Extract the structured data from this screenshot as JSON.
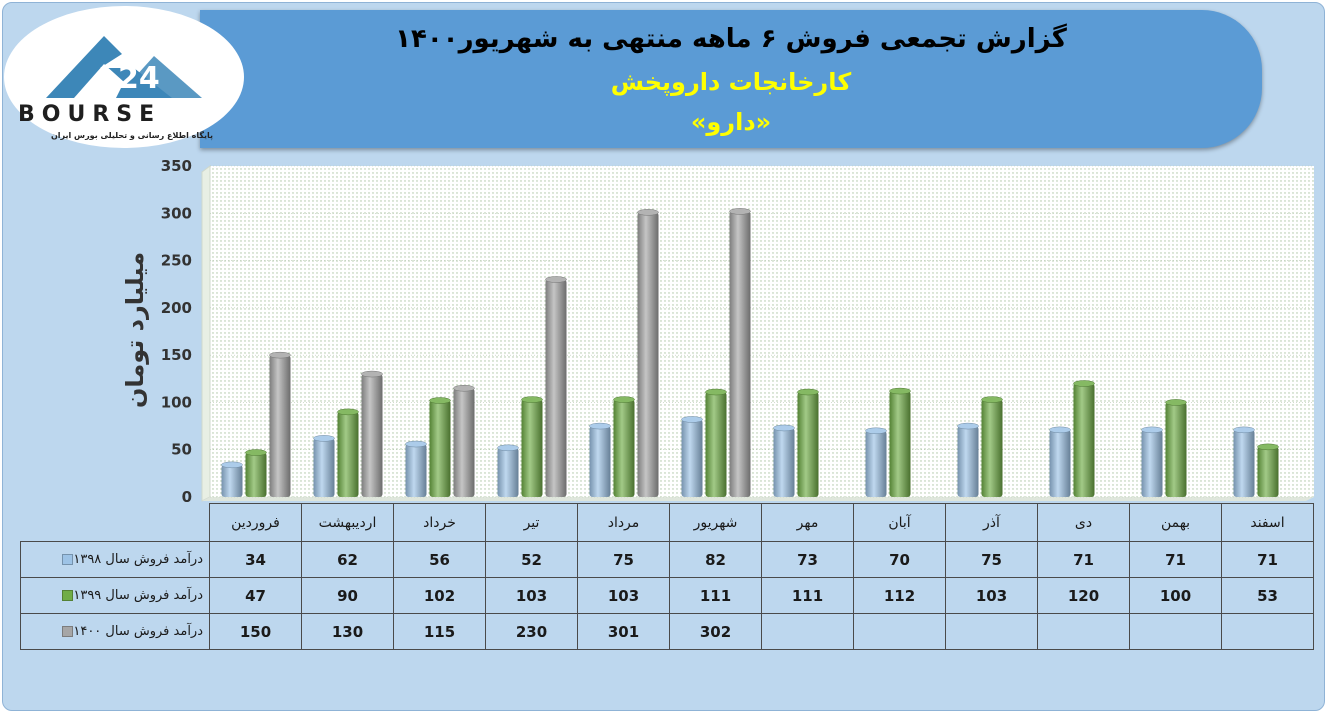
{
  "header": {
    "title": "گزارش تجمعی فروش ۶ ماهه منتهی به شهریور۱۴۰۰",
    "subtitle": "کارخانجات داروپخش",
    "company": "«دارو»"
  },
  "logo": {
    "text": "BOURSE",
    "mark": "24",
    "tagline": "پایگاه اطلاع رسانی و تحلیلی بورس ایران"
  },
  "colors": {
    "series_1398": "#9dc3e6",
    "series_1399": "#70ad47",
    "series_1400": "#a6a6a6",
    "header_bg": "#5b9bd5",
    "subtitle_text": "#ffff00"
  },
  "chart_data": {
    "type": "bar",
    "ylabel": "میلیارد تومان",
    "ylim": [
      0,
      350
    ],
    "yticks": [
      0,
      50,
      100,
      150,
      200,
      250,
      300,
      350
    ],
    "grid": "dotted",
    "legend": "table-bottom",
    "categories": [
      "فروردین",
      "اردیبهشت",
      "خرداد",
      "تیر",
      "مرداد",
      "شهریور",
      "مهر",
      "آبان",
      "آذر",
      "دی",
      "بهمن",
      "اسفند"
    ],
    "series": [
      {
        "name": "درآمد فروش سال ۱۳۹۸",
        "color": "#9dc3e6",
        "values": [
          34,
          62,
          56,
          52,
          75,
          82,
          73,
          70,
          75,
          71,
          71,
          71
        ]
      },
      {
        "name": "درآمد فروش سال ۱۳۹۹",
        "color": "#70ad47",
        "values": [
          47,
          90,
          102,
          103,
          103,
          111,
          111,
          112,
          103,
          120,
          100,
          53
        ]
      },
      {
        "name": "درآمد فروش سال ۱۴۰۰",
        "color": "#a6a6a6",
        "values": [
          150,
          130,
          115,
          230,
          301,
          302,
          null,
          null,
          null,
          null,
          null,
          null
        ]
      }
    ]
  }
}
